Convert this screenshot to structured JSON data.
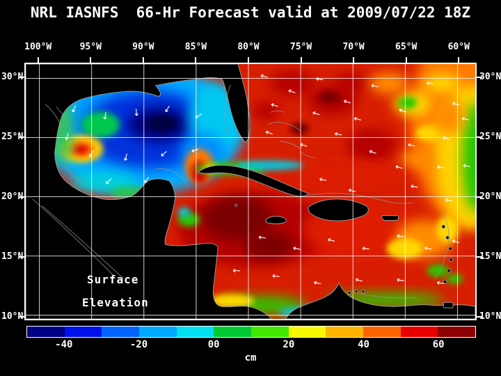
{
  "title": "NRL IASNFS  66-Hr Forecast valid at 2009/07/22 18Z",
  "axes": {
    "x_ticks": [
      "100°W",
      "95°W",
      "90°W",
      "85°W",
      "80°W",
      "75°W",
      "70°W",
      "65°W",
      "60°W"
    ],
    "y_ticks": [
      "30°N",
      "25°N",
      "20°N",
      "15°N",
      "10°N"
    ]
  },
  "annotation": [
    "Surface",
    "Elevation"
  ],
  "colorbar": {
    "tick_labels": [
      "-40",
      "-20",
      "00",
      "20",
      "40",
      "60"
    ],
    "unit": "cm",
    "value_range": [
      -50,
      70
    ],
    "colors": [
      "#000085",
      "#0010e8",
      "#0064ff",
      "#00a8ff",
      "#00e0ee",
      "#00c832",
      "#40e800",
      "#f8f800",
      "#ffb400",
      "#ff6400",
      "#e80000",
      "#8c0000"
    ]
  },
  "chart_data": {
    "type": "heatmap",
    "title": "NRL IASNFS 66-Hr Forecast valid at 2009/07/22 18Z",
    "variable": "Surface Elevation",
    "unit": "cm",
    "x_tick_labels": [
      "100°W",
      "95°W",
      "90°W",
      "85°W",
      "80°W",
      "75°W",
      "70°W",
      "65°W",
      "60°W"
    ],
    "y_tick_labels": [
      "30°N",
      "25°N",
      "20°N",
      "15°N",
      "10°N"
    ],
    "colorbar_ticks": [
      -40,
      -20,
      0,
      20,
      40,
      60
    ],
    "colorbar_range": [
      -50,
      70
    ],
    "legend_position": "bottom",
    "grid": true,
    "notable_features": [
      {
        "region": "Gulf of Mexico ~90W 26N",
        "value_cm": -50
      },
      {
        "region": "Gulf of Mexico ~96W 24N",
        "value_cm": 40
      },
      {
        "region": "Western Caribbean ~82W 19N",
        "value_cm": 60
      },
      {
        "region": "Atlantic east of Bahamas",
        "value_cm": 45
      },
      {
        "region": "Right edge ~59W band",
        "value_cm": 0
      }
    ]
  }
}
